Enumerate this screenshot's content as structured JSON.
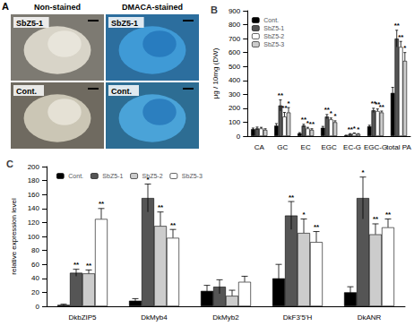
{
  "photo_panel": {
    "label": "A",
    "columns": [
      "Non-stained",
      "DMACA-stained"
    ],
    "rows": [
      "SbZ5-1",
      "Cont."
    ]
  },
  "chart_data": [
    {
      "type": "bar",
      "title": "B",
      "y_label": "μg / 10mg (DW)",
      "categories": [
        "CA",
        "GC",
        "EC",
        "EGC",
        "EC-G",
        "EGC-G",
        "total PA"
      ],
      "series": [
        {
          "name": "Cont.",
          "color": "#000000",
          "values": [
            50,
            75,
            20,
            60,
            5,
            70,
            310
          ],
          "errors": [
            8,
            15,
            5,
            10,
            2,
            8,
            40
          ],
          "significance": [
            null,
            null,
            null,
            null,
            null,
            null,
            null
          ]
        },
        {
          "name": "SbZ5-1",
          "color": "#555555",
          "values": [
            55,
            220,
            75,
            140,
            15,
            185,
            700
          ],
          "errors": [
            10,
            40,
            10,
            15,
            3,
            15,
            60
          ],
          "significance": [
            null,
            "**",
            "**",
            "**",
            "**",
            "**",
            "**"
          ]
        },
        {
          "name": "SbZ5-2",
          "color": "#ffffff",
          "values": [
            55,
            140,
            55,
            120,
            20,
            180,
            640
          ],
          "errors": [
            8,
            30,
            8,
            10,
            3,
            15,
            40
          ],
          "significance": [
            null,
            "**",
            "*",
            "*",
            "*",
            "**",
            "**"
          ]
        },
        {
          "name": "SbZ5-3",
          "color": "#cccccc",
          "values": [
            45,
            170,
            45,
            100,
            15,
            170,
            540
          ],
          "errors": [
            8,
            35,
            8,
            10,
            3,
            10,
            60
          ],
          "significance": [
            null,
            "*",
            "**",
            "*",
            "*",
            "**",
            "*"
          ]
        }
      ],
      "ylim": [
        0,
        900
      ],
      "yticks": [
        0,
        100,
        200,
        300,
        400,
        500,
        600,
        700,
        800,
        900
      ],
      "legend": "top-left",
      "grid": false
    },
    {
      "type": "bar",
      "title": "C",
      "y_label": "relative expression level",
      "categories": [
        "DkbZIP5",
        "DkMyb4",
        "DkMyb2",
        "DkF3'5'H",
        "DkANR"
      ],
      "series": [
        {
          "name": "Cont.",
          "color": "#000000",
          "values": [
            2,
            8,
            22,
            40,
            20
          ],
          "errors": [
            1,
            3,
            8,
            20,
            8
          ],
          "significance": [
            null,
            null,
            null,
            null,
            null
          ]
        },
        {
          "name": "SbZ5-1",
          "color": "#555555",
          "values": [
            48,
            155,
            28,
            130,
            155
          ],
          "errors": [
            5,
            20,
            10,
            20,
            30
          ],
          "significance": [
            "**",
            "*",
            null,
            "**",
            "*"
          ]
        },
        {
          "name": "SbZ5-2",
          "color": "#cccccc",
          "values": [
            47,
            115,
            15,
            105,
            103
          ],
          "errors": [
            5,
            20,
            8,
            20,
            15
          ],
          "significance": [
            "**",
            "**",
            null,
            "*",
            "**"
          ]
        },
        {
          "name": "SbZ5-3",
          "color": "#ffffff",
          "values": [
            125,
            98,
            35,
            92,
            113
          ],
          "errors": [
            15,
            12,
            8,
            15,
            12
          ],
          "significance": [
            "**",
            "**",
            null,
            "**",
            "**"
          ]
        }
      ],
      "ylim": [
        0,
        200
      ],
      "yticks": [
        0,
        20,
        40,
        60,
        80,
        100,
        120,
        140,
        160,
        180,
        200
      ],
      "legend": "top-left",
      "grid": false
    }
  ]
}
